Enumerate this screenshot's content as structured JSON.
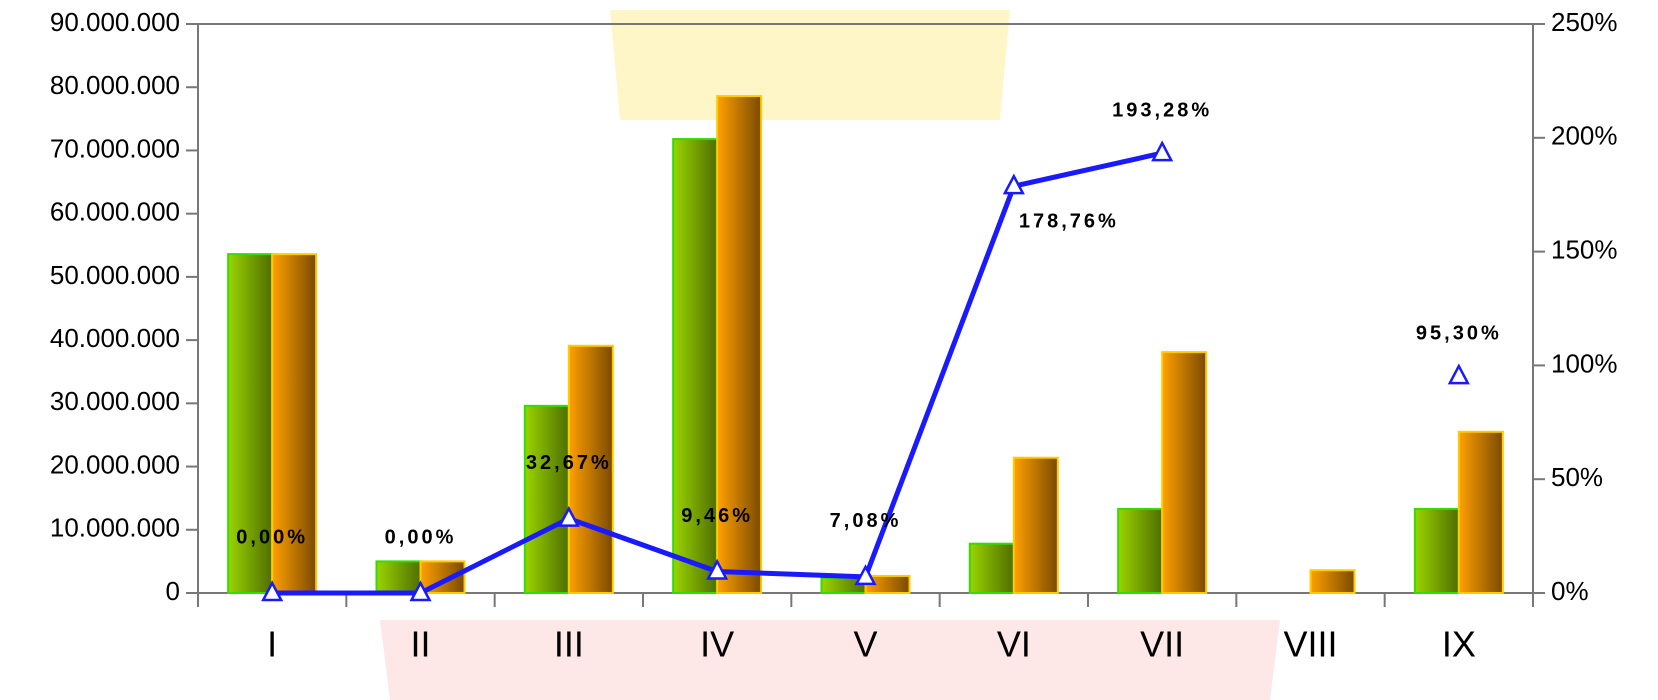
{
  "chart_data": {
    "type": "bar",
    "categories": [
      "I",
      "II",
      "III",
      "IV",
      "V",
      "VI",
      "VII",
      "VIII",
      "IX"
    ],
    "series": [
      {
        "color": "#7fbf00",
        "values": [
          53600000,
          5000000,
          29600000,
          71800000,
          2400000,
          7800000,
          13300000,
          null,
          13300000
        ]
      },
      {
        "color": "#ff9900",
        "values": [
          53600000,
          5000000,
          39100000,
          78600000,
          2700000,
          21400000,
          38100000,
          3600000,
          25500000
        ]
      },
      {
        "type": "line",
        "axis": "y2",
        "color": "#1a1aff",
        "values": [
          0,
          0,
          32.67,
          9.46,
          7.08,
          178.76,
          193.28,
          null,
          95.3
        ],
        "value_labels": [
          "0,00%",
          "0,00%",
          "32,67%",
          "9,46%",
          "7,08%",
          "178,76%",
          "193,28%",
          null,
          "95,30%"
        ]
      }
    ],
    "ylim": [
      0,
      90000000
    ],
    "yticks": [
      {
        "value": 0,
        "label": "0"
      },
      {
        "value": 10000000,
        "label": "10.000.000"
      },
      {
        "value": 20000000,
        "label": "20.000.000"
      },
      {
        "value": 30000000,
        "label": "30.000.000"
      },
      {
        "value": 40000000,
        "label": "40.000.000"
      },
      {
        "value": 50000000,
        "label": "50.000.000"
      },
      {
        "value": 60000000,
        "label": "60.000.000"
      },
      {
        "value": 70000000,
        "label": "70.000.000"
      },
      {
        "value": 80000000,
        "label": "80.000.000"
      },
      {
        "value": 90000000,
        "label": "90.000.000"
      }
    ],
    "y2lim": [
      0,
      250
    ],
    "y2ticks": [
      {
        "value": 0,
        "label": "0%"
      },
      {
        "value": 50,
        "label": "50%"
      },
      {
        "value": 100,
        "label": "100%"
      },
      {
        "value": 150,
        "label": "150%"
      },
      {
        "value": 200,
        "label": "200%"
      },
      {
        "value": 250,
        "label": "250%"
      }
    ]
  }
}
